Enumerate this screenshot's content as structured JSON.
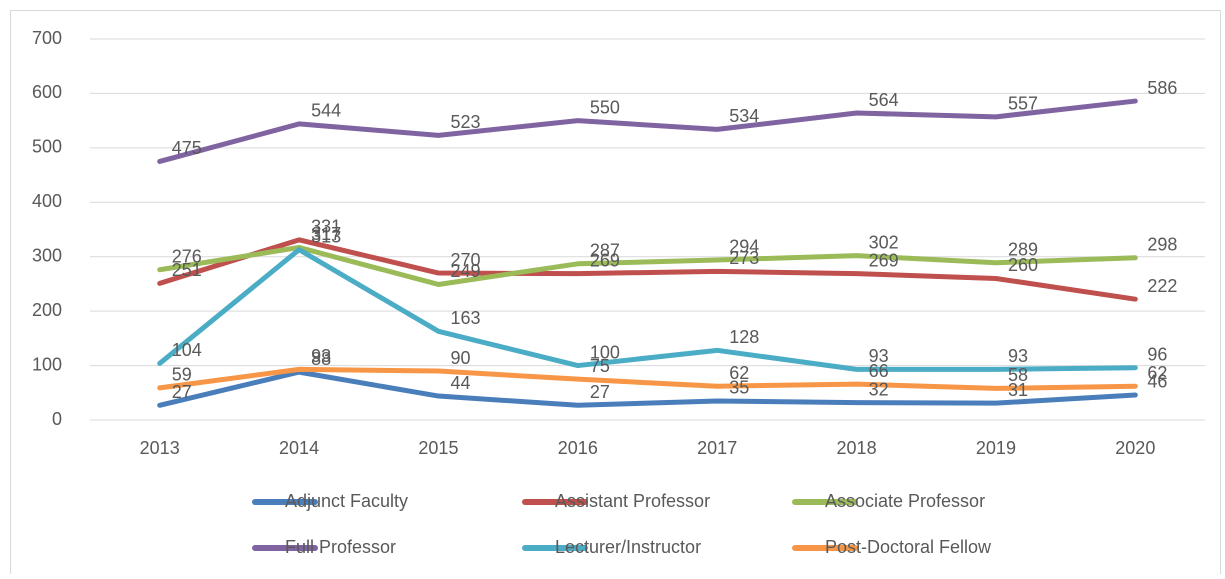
{
  "chart_data": {
    "type": "line",
    "categories": [
      "2013",
      "2014",
      "2015",
      "2016",
      "2017",
      "2018",
      "2019",
      "2020"
    ],
    "series": [
      {
        "name": "Adjunct Faculty",
        "color": "#4a7ebb",
        "values": [
          27,
          88,
          44,
          27,
          35,
          32,
          31,
          46
        ]
      },
      {
        "name": "Assistant Professor",
        "color": "#c0504d",
        "values": [
          251,
          331,
          270,
          269,
          273,
          269,
          260,
          222
        ]
      },
      {
        "name": "Associate Professor",
        "color": "#9bbb59",
        "values": [
          276,
          317,
          249,
          287,
          294,
          302,
          289,
          298
        ]
      },
      {
        "name": "Full Professor",
        "color": "#8064a2",
        "values": [
          475,
          544,
          523,
          550,
          534,
          564,
          557,
          586
        ]
      },
      {
        "name": "Lecturer/Instructor",
        "color": "#4bacc6",
        "values": [
          104,
          313,
          163,
          100,
          128,
          93,
          93,
          96
        ]
      },
      {
        "name": "Post-Doctoral Fellow",
        "color": "#f79646",
        "values": [
          59,
          93,
          90,
          75,
          62,
          66,
          58,
          62
        ]
      }
    ],
    "ylim": [
      0,
      700
    ],
    "yticks": [
      0,
      100,
      200,
      300,
      400,
      500,
      600,
      700
    ],
    "grid": true,
    "legend": "bottom"
  }
}
